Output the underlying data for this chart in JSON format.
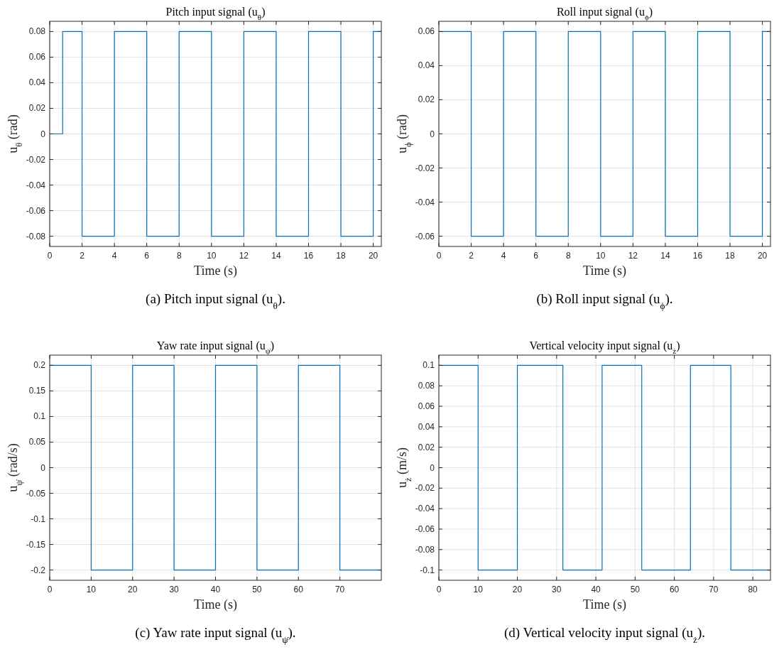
{
  "chart_data": [
    {
      "type": "step",
      "title": "Pitch input signal (u$_{θ}$)",
      "xlabel": "Time (s)",
      "ylabel": "u$_{θ}$ (rad)",
      "annotations": [
        "(a)  Pitch input signal (u$_{θ}$)."
      ],
      "series": [
        {
          "color": "#0072bd",
          "x": [
            0,
            0.8,
            2,
            4,
            6,
            8,
            10,
            12,
            14,
            16,
            18,
            20,
            20.5
          ],
          "values": [
            0,
            0.08,
            -0.08,
            0.08,
            -0.08,
            0.08,
            -0.08,
            0.08,
            -0.08,
            0.08,
            -0.08,
            0.08,
            0.08
          ]
        }
      ],
      "xlim": [
        0,
        20.5
      ],
      "xticks": [
        0,
        2,
        4,
        6,
        8,
        10,
        12,
        14,
        16,
        18,
        20
      ],
      "ylim": [
        -0.088,
        0.088
      ],
      "yticks": [
        -0.08,
        -0.06,
        -0.04,
        -0.02,
        0,
        0.02,
        0.04,
        0.06,
        0.08
      ],
      "grid": true
    },
    {
      "type": "step",
      "title": "Roll input signal (u$_{ϕ}$)",
      "xlabel": "Time (s)",
      "ylabel": "u$_{ϕ}$ (rad)",
      "annotations": [
        "(b)  Roll input signal (u$_{ϕ}$)."
      ],
      "series": [
        {
          "color": "#0072bd",
          "x": [
            0,
            2,
            4,
            6,
            8,
            10,
            12,
            14,
            16,
            18,
            20,
            20.5
          ],
          "values": [
            0.06,
            -0.06,
            0.06,
            -0.06,
            0.06,
            -0.06,
            0.06,
            -0.06,
            0.06,
            -0.06,
            0.06,
            0.06
          ]
        }
      ],
      "xlim": [
        0,
        20.5
      ],
      "xticks": [
        0,
        2,
        4,
        6,
        8,
        10,
        12,
        14,
        16,
        18,
        20
      ],
      "ylim": [
        -0.066,
        0.066
      ],
      "yticks": [
        -0.06,
        -0.04,
        -0.02,
        0,
        0.02,
        0.04,
        0.06
      ],
      "grid": true
    },
    {
      "type": "step",
      "title": "Yaw rate input signal (u$_{ψ̇}$)",
      "xlabel": "Time (s)",
      "ylabel": "u$_{ψ̇}$ (rad/s)",
      "annotations": [
        "(c)  Yaw rate input signal (u$_{ψ̇}$)."
      ],
      "series": [
        {
          "color": "#0072bd",
          "x": [
            0,
            10,
            20,
            30,
            40,
            50,
            60,
            70,
            80
          ],
          "values": [
            0.2,
            -0.2,
            0.2,
            -0.2,
            0.2,
            -0.2,
            0.2,
            -0.2,
            -0.2
          ]
        }
      ],
      "xlim": [
        0,
        80
      ],
      "xticks": [
        0,
        10,
        20,
        30,
        40,
        50,
        60,
        70
      ],
      "ylim": [
        -0.22,
        0.22
      ],
      "yticks": [
        -0.2,
        -0.15,
        -0.1,
        -0.05,
        0,
        0.05,
        0.1,
        0.15,
        0.2
      ],
      "grid": true
    },
    {
      "type": "step",
      "title": "Vertical velocity input signal (u$_{ż}$)",
      "xlabel": "Time (s)",
      "ylabel": "u$_{ż}$ (m/s)",
      "annotations": [
        "(d)  Vertical velocity input signal (u$_{ż}$)."
      ],
      "series": [
        {
          "color": "#0072bd",
          "x": [
            0,
            10,
            20,
            31.6,
            41.6,
            51.7,
            64.1,
            74.4,
            84.5
          ],
          "values": [
            0.1,
            -0.1,
            0.1,
            -0.1,
            0.1,
            -0.1,
            0.1,
            -0.1,
            -0.1
          ]
        }
      ],
      "xlim": [
        0,
        84.5
      ],
      "xticks": [
        0,
        10,
        20,
        30,
        40,
        50,
        60,
        70,
        80
      ],
      "ylim": [
        -0.11,
        0.11
      ],
      "yticks": [
        -0.1,
        -0.08,
        -0.06,
        -0.04,
        -0.02,
        0,
        0.02,
        0.04,
        0.06,
        0.08,
        0.1
      ],
      "grid": true
    }
  ]
}
